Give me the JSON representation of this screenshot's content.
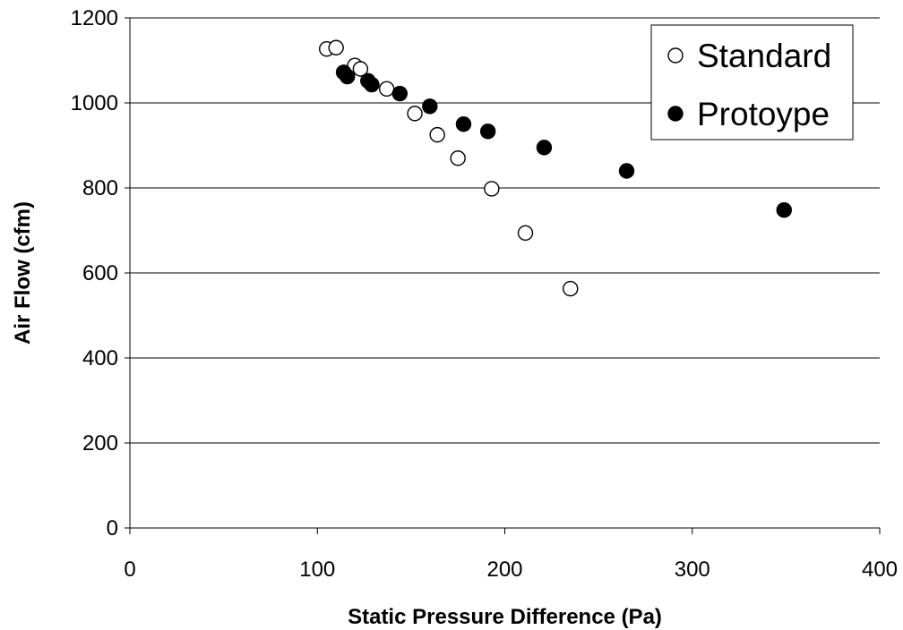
{
  "chart_data": {
    "type": "scatter",
    "xlabel": "Static Pressure Difference (Pa)",
    "ylabel": "Air Flow (cfm)",
    "xlim": [
      0,
      400
    ],
    "ylim": [
      0,
      1200
    ],
    "x_ticks": [
      0,
      100,
      200,
      300,
      400
    ],
    "y_ticks": [
      0,
      200,
      400,
      600,
      800,
      1000,
      1200
    ],
    "grid": "horizontal",
    "legend_position": "top-right",
    "series": [
      {
        "name": "Standard",
        "marker": "hollow-circle",
        "color": "#000000",
        "points": [
          {
            "x": 105,
            "y": 1127
          },
          {
            "x": 110,
            "y": 1130
          },
          {
            "x": 120,
            "y": 1088
          },
          {
            "x": 123,
            "y": 1080
          },
          {
            "x": 137,
            "y": 1033
          },
          {
            "x": 152,
            "y": 975
          },
          {
            "x": 164,
            "y": 925
          },
          {
            "x": 175,
            "y": 870
          },
          {
            "x": 193,
            "y": 798
          },
          {
            "x": 211,
            "y": 694
          },
          {
            "x": 235,
            "y": 563
          }
        ]
      },
      {
        "name": "Protoype",
        "marker": "filled-circle",
        "color": "#000000",
        "points": [
          {
            "x": 114,
            "y": 1072
          },
          {
            "x": 116,
            "y": 1062
          },
          {
            "x": 127,
            "y": 1052
          },
          {
            "x": 129,
            "y": 1043
          },
          {
            "x": 144,
            "y": 1022
          },
          {
            "x": 160,
            "y": 992
          },
          {
            "x": 178,
            "y": 950
          },
          {
            "x": 191,
            "y": 933
          },
          {
            "x": 221,
            "y": 895
          },
          {
            "x": 265,
            "y": 840
          },
          {
            "x": 349,
            "y": 748
          }
        ]
      }
    ]
  }
}
